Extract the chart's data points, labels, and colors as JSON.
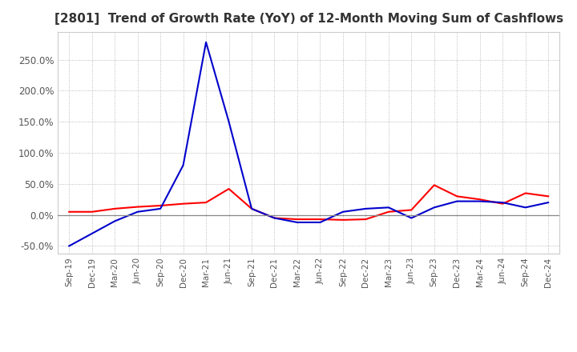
{
  "title": "[2801]  Trend of Growth Rate (YoY) of 12-Month Moving Sum of Cashflows",
  "title_color": "#333333",
  "title_fontsize": 11,
  "background_color": "#ffffff",
  "grid_color": "#aaaaaa",
  "yticks": [
    -0.5,
    0.0,
    0.5,
    1.0,
    1.5,
    2.0,
    2.5
  ],
  "ytick_labels": [
    "-50.0%",
    "0.0%",
    "50.0%",
    "100.0%",
    "150.0%",
    "200.0%",
    "250.0%"
  ],
  "x_labels": [
    "Sep-19",
    "Dec-19",
    "Mar-20",
    "Jun-20",
    "Sep-20",
    "Dec-20",
    "Mar-21",
    "Jun-21",
    "Sep-21",
    "Dec-21",
    "Mar-22",
    "Jun-22",
    "Sep-22",
    "Dec-22",
    "Mar-23",
    "Jun-23",
    "Sep-23",
    "Dec-23",
    "Mar-24",
    "Jun-24",
    "Sep-24",
    "Dec-24"
  ],
  "operating_cashflow": [
    0.05,
    0.05,
    0.1,
    0.13,
    0.15,
    0.18,
    0.2,
    0.42,
    0.1,
    -0.05,
    -0.07,
    -0.07,
    -0.08,
    -0.07,
    0.05,
    0.08,
    0.48,
    0.3,
    0.25,
    0.18,
    0.35,
    0.3
  ],
  "free_cashflow": [
    -0.5,
    -0.3,
    -0.1,
    0.05,
    0.1,
    0.8,
    2.78,
    1.5,
    0.1,
    -0.05,
    -0.12,
    -0.12,
    0.05,
    0.1,
    0.12,
    -0.05,
    0.12,
    0.22,
    0.22,
    0.2,
    0.12,
    0.2
  ],
  "operating_color": "#ff0000",
  "free_color": "#0000cc",
  "line_width": 1.5,
  "ymin": -0.62,
  "ymax": 2.95
}
